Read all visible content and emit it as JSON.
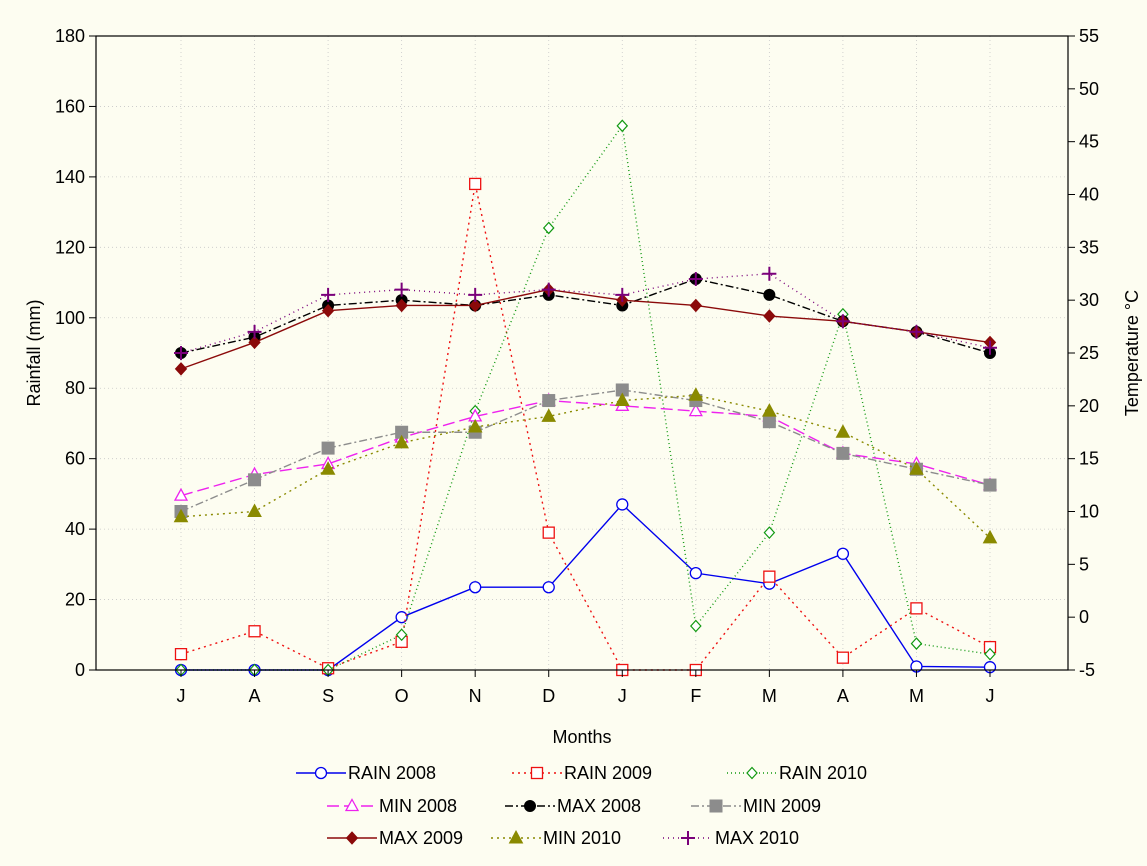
{
  "chart_data": {
    "type": "line",
    "xlabel": "Months",
    "ylabel": "Rainfall (mm)",
    "y2label": "Temperature °C",
    "categories": [
      "J",
      "A",
      "S",
      "O",
      "N",
      "D",
      "J",
      "F",
      "M",
      "A",
      "M",
      "J"
    ],
    "ylim": [
      0,
      180
    ],
    "yticks": [
      0,
      20,
      40,
      60,
      80,
      100,
      120,
      140,
      160,
      180
    ],
    "y2lim": [
      -5,
      55
    ],
    "y2ticks": [
      -5,
      0,
      5,
      10,
      15,
      20,
      25,
      30,
      35,
      40,
      45,
      50,
      55
    ],
    "grid": true,
    "legend": "bottom",
    "series": [
      {
        "name": "RAIN 2008",
        "axis": "left",
        "color": "#0000ee",
        "marker": "circle-open",
        "dash": "",
        "values": [
          0,
          0,
          0,
          15,
          23.5,
          23.5,
          47,
          27.5,
          24.5,
          33,
          1,
          0.8
        ]
      },
      {
        "name": "RAIN 2009",
        "axis": "left",
        "color": "#ee1111",
        "marker": "square-open",
        "dash": "2,4",
        "values": [
          4.5,
          11,
          0.5,
          8,
          138,
          39,
          0,
          0,
          26.5,
          3.5,
          17.5,
          6.5
        ]
      },
      {
        "name": "RAIN 2010",
        "axis": "left",
        "color": "#119911",
        "marker": "diamond-open",
        "dash": "1,3",
        "values": [
          0,
          0,
          0,
          10,
          73.5,
          125.5,
          154.5,
          12.5,
          39,
          101,
          7.5,
          4.5
        ]
      },
      {
        "name": "MIN 2008",
        "axis": "right",
        "color": "#ee22ee",
        "marker": "triangle-open",
        "dash": "12,5",
        "values": [
          11.5,
          13.5,
          14.5,
          17,
          19,
          20.5,
          20,
          19.5,
          19,
          15.5,
          14.5,
          12.5
        ]
      },
      {
        "name": "MAX 2008",
        "axis": "right",
        "color": "#000000",
        "marker": "circle-filled",
        "dash": "8,3,2,3",
        "values": [
          25,
          26.5,
          29.5,
          30,
          29.5,
          30.5,
          29.5,
          32,
          30.5,
          28,
          27,
          25
        ]
      },
      {
        "name": "MIN 2009",
        "axis": "right",
        "color": "#8c8c8c",
        "marker": "square-filled",
        "dash": "8,3,2,3",
        "values": [
          10,
          13,
          16,
          17.5,
          17.5,
          20.5,
          21.5,
          20.5,
          18.5,
          15.5,
          14,
          12.5
        ]
      },
      {
        "name": "MAX 2009",
        "axis": "right",
        "color": "#8b0a0a",
        "marker": "diamond-filled",
        "dash": "",
        "values": [
          23.5,
          26,
          29,
          29.5,
          29.5,
          31,
          30,
          29.5,
          28.5,
          28,
          27,
          26
        ]
      },
      {
        "name": "MIN 2010",
        "axis": "right",
        "color": "#8a8a00",
        "marker": "triangle-filled",
        "dash": "2,4",
        "values": [
          9.5,
          10,
          14,
          16.5,
          18,
          19,
          20.5,
          21,
          19.5,
          17.5,
          14,
          7.5
        ]
      },
      {
        "name": "MAX 2010",
        "axis": "right",
        "color": "#7a007a",
        "marker": "plus",
        "dash": "1,4",
        "values": [
          25,
          27,
          30.5,
          31,
          30.5,
          31,
          30.5,
          32,
          32.5,
          28,
          27,
          25.5
        ]
      }
    ]
  }
}
